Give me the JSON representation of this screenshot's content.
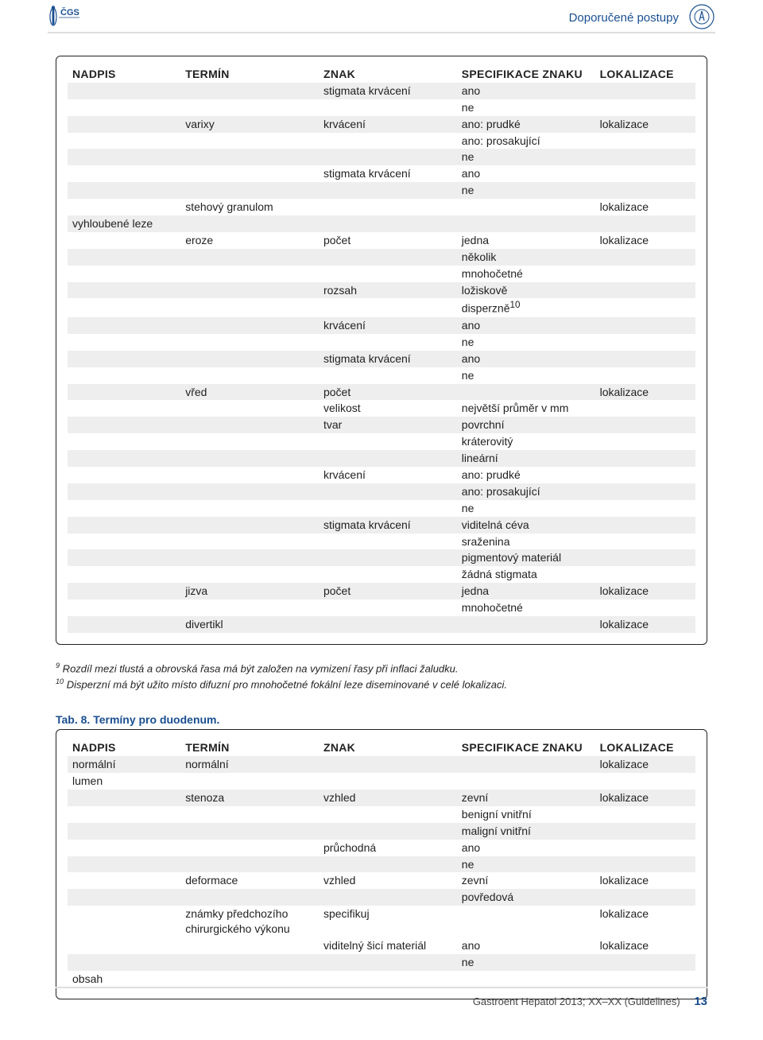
{
  "header": {
    "section_title": "Doporučené postupy"
  },
  "table1": {
    "headers": [
      "NADPIS",
      "TERMÍN",
      "ZNAK",
      "SPECIFIKACE ZNAKU",
      "LOKALIZACE"
    ],
    "rows": [
      {
        "c": [
          "",
          "",
          "stigmata krvácení",
          "ano",
          ""
        ],
        "s": 1
      },
      {
        "c": [
          "",
          "",
          "",
          "ne",
          ""
        ],
        "s": 0
      },
      {
        "c": [
          "",
          "varixy",
          "krvácení",
          "ano: prudké",
          "lokalizace"
        ],
        "s": 1
      },
      {
        "c": [
          "",
          "",
          "",
          "ano: prosakující",
          ""
        ],
        "s": 0
      },
      {
        "c": [
          "",
          "",
          "",
          "ne",
          ""
        ],
        "s": 1
      },
      {
        "c": [
          "",
          "",
          "stigmata krvácení",
          "ano",
          ""
        ],
        "s": 0
      },
      {
        "c": [
          "",
          "",
          "",
          "ne",
          ""
        ],
        "s": 1
      },
      {
        "c": [
          "",
          "stehový granulom",
          "",
          "",
          "lokalizace"
        ],
        "s": 0
      },
      {
        "c": [
          "vyhloubené leze",
          "",
          "",
          "",
          ""
        ],
        "s": 1
      },
      {
        "c": [
          "",
          "eroze",
          "počet",
          "jedna",
          "lokalizace"
        ],
        "s": 0
      },
      {
        "c": [
          "",
          "",
          "",
          "několik",
          ""
        ],
        "s": 1
      },
      {
        "c": [
          "",
          "",
          "",
          "mnohočetné",
          ""
        ],
        "s": 0
      },
      {
        "c": [
          "",
          "",
          "rozsah",
          "ložiskově",
          ""
        ],
        "s": 1
      },
      {
        "c": [
          "",
          "",
          "",
          "disperzně<sup>10</sup>",
          ""
        ],
        "s": 0
      },
      {
        "c": [
          "",
          "",
          "krvácení",
          "ano",
          ""
        ],
        "s": 1
      },
      {
        "c": [
          "",
          "",
          "",
          "ne",
          ""
        ],
        "s": 0
      },
      {
        "c": [
          "",
          "",
          "stigmata krvácení",
          "ano",
          ""
        ],
        "s": 1
      },
      {
        "c": [
          "",
          "",
          "",
          "ne",
          ""
        ],
        "s": 0
      },
      {
        "c": [
          "",
          "vřed",
          "počet",
          "",
          "lokalizace"
        ],
        "s": 1
      },
      {
        "c": [
          "",
          "",
          "velikost",
          "největší průměr v mm",
          ""
        ],
        "s": 0
      },
      {
        "c": [
          "",
          "",
          "tvar",
          "povrchní",
          ""
        ],
        "s": 1
      },
      {
        "c": [
          "",
          "",
          "",
          "kráterovitý",
          ""
        ],
        "s": 0
      },
      {
        "c": [
          "",
          "",
          "",
          "lineární",
          ""
        ],
        "s": 1
      },
      {
        "c": [
          "",
          "",
          "krvácení",
          "ano: prudké",
          ""
        ],
        "s": 0
      },
      {
        "c": [
          "",
          "",
          "",
          "ano: prosakující",
          ""
        ],
        "s": 1
      },
      {
        "c": [
          "",
          "",
          "",
          "ne",
          ""
        ],
        "s": 0
      },
      {
        "c": [
          "",
          "",
          "stigmata krvácení",
          "viditelná céva",
          ""
        ],
        "s": 1
      },
      {
        "c": [
          "",
          "",
          "",
          "sraženina",
          ""
        ],
        "s": 0
      },
      {
        "c": [
          "",
          "",
          "",
          "pigmentový materiál",
          ""
        ],
        "s": 1
      },
      {
        "c": [
          "",
          "",
          "",
          "žádná stigmata",
          ""
        ],
        "s": 0
      },
      {
        "c": [
          "",
          "jizva",
          "počet",
          "jedna",
          "lokalizace"
        ],
        "s": 1
      },
      {
        "c": [
          "",
          "",
          "",
          "mnohočetné",
          ""
        ],
        "s": 0
      },
      {
        "c": [
          "",
          "divertikl",
          "",
          "",
          "lokalizace"
        ],
        "s": 1
      }
    ]
  },
  "footnotes": {
    "fn9_sup": "9",
    "fn9": " Rozdíl mezi tlustá a obrovská řasa má být založen na vymizení řasy při inflaci žaludku.",
    "fn10_sup": "10",
    "fn10": " Disperzní má být užito místo difuzní pro mnohočetné fokální leze diseminované v celé lokalizaci."
  },
  "table2": {
    "caption": "Tab. 8. Termíny pro duodenum.",
    "headers": [
      "NADPIS",
      "TERMÍN",
      "ZNAK",
      "SPECIFIKACE ZNAKU",
      "LOKALIZACE"
    ],
    "rows": [
      {
        "c": [
          "normální",
          "normální",
          "",
          "",
          "lokalizace"
        ],
        "s": 1
      },
      {
        "c": [
          "lumen",
          "",
          "",
          "",
          ""
        ],
        "s": 0
      },
      {
        "c": [
          "",
          "stenoza",
          "vzhled",
          "zevní",
          "lokalizace"
        ],
        "s": 1
      },
      {
        "c": [
          "",
          "",
          "",
          "benigní vnitřní",
          ""
        ],
        "s": 0
      },
      {
        "c": [
          "",
          "",
          "",
          "maligní vnitřní",
          ""
        ],
        "s": 1
      },
      {
        "c": [
          "",
          "",
          "průchodná",
          "ano",
          ""
        ],
        "s": 0
      },
      {
        "c": [
          "",
          "",
          "",
          "ne",
          ""
        ],
        "s": 1
      },
      {
        "c": [
          "",
          "deformace",
          "vzhled",
          "zevní",
          "lokalizace"
        ],
        "s": 0
      },
      {
        "c": [
          "",
          "",
          "",
          "povředová",
          ""
        ],
        "s": 1
      },
      {
        "c": [
          "",
          "známky předchozího chirurgického výkonu",
          "specifikuj",
          "",
          "lokalizace"
        ],
        "s": 0
      },
      {
        "c": [
          "",
          "",
          "viditelný šicí materiál",
          "ano",
          "lokalizace"
        ],
        "s": 0
      },
      {
        "c": [
          "",
          "",
          "",
          "ne",
          ""
        ],
        "s": 1
      },
      {
        "c": [
          "obsah",
          "",
          "",
          "",
          ""
        ],
        "s": 0
      }
    ]
  },
  "footer": {
    "citation": "Gastroent Hepatol 2013; XX–XX (Guidelines)",
    "page": "13"
  },
  "colors": {
    "accent": "#1a4f91",
    "stripe": "#eeeeee",
    "rule": "#dddddd",
    "text": "#222222"
  }
}
